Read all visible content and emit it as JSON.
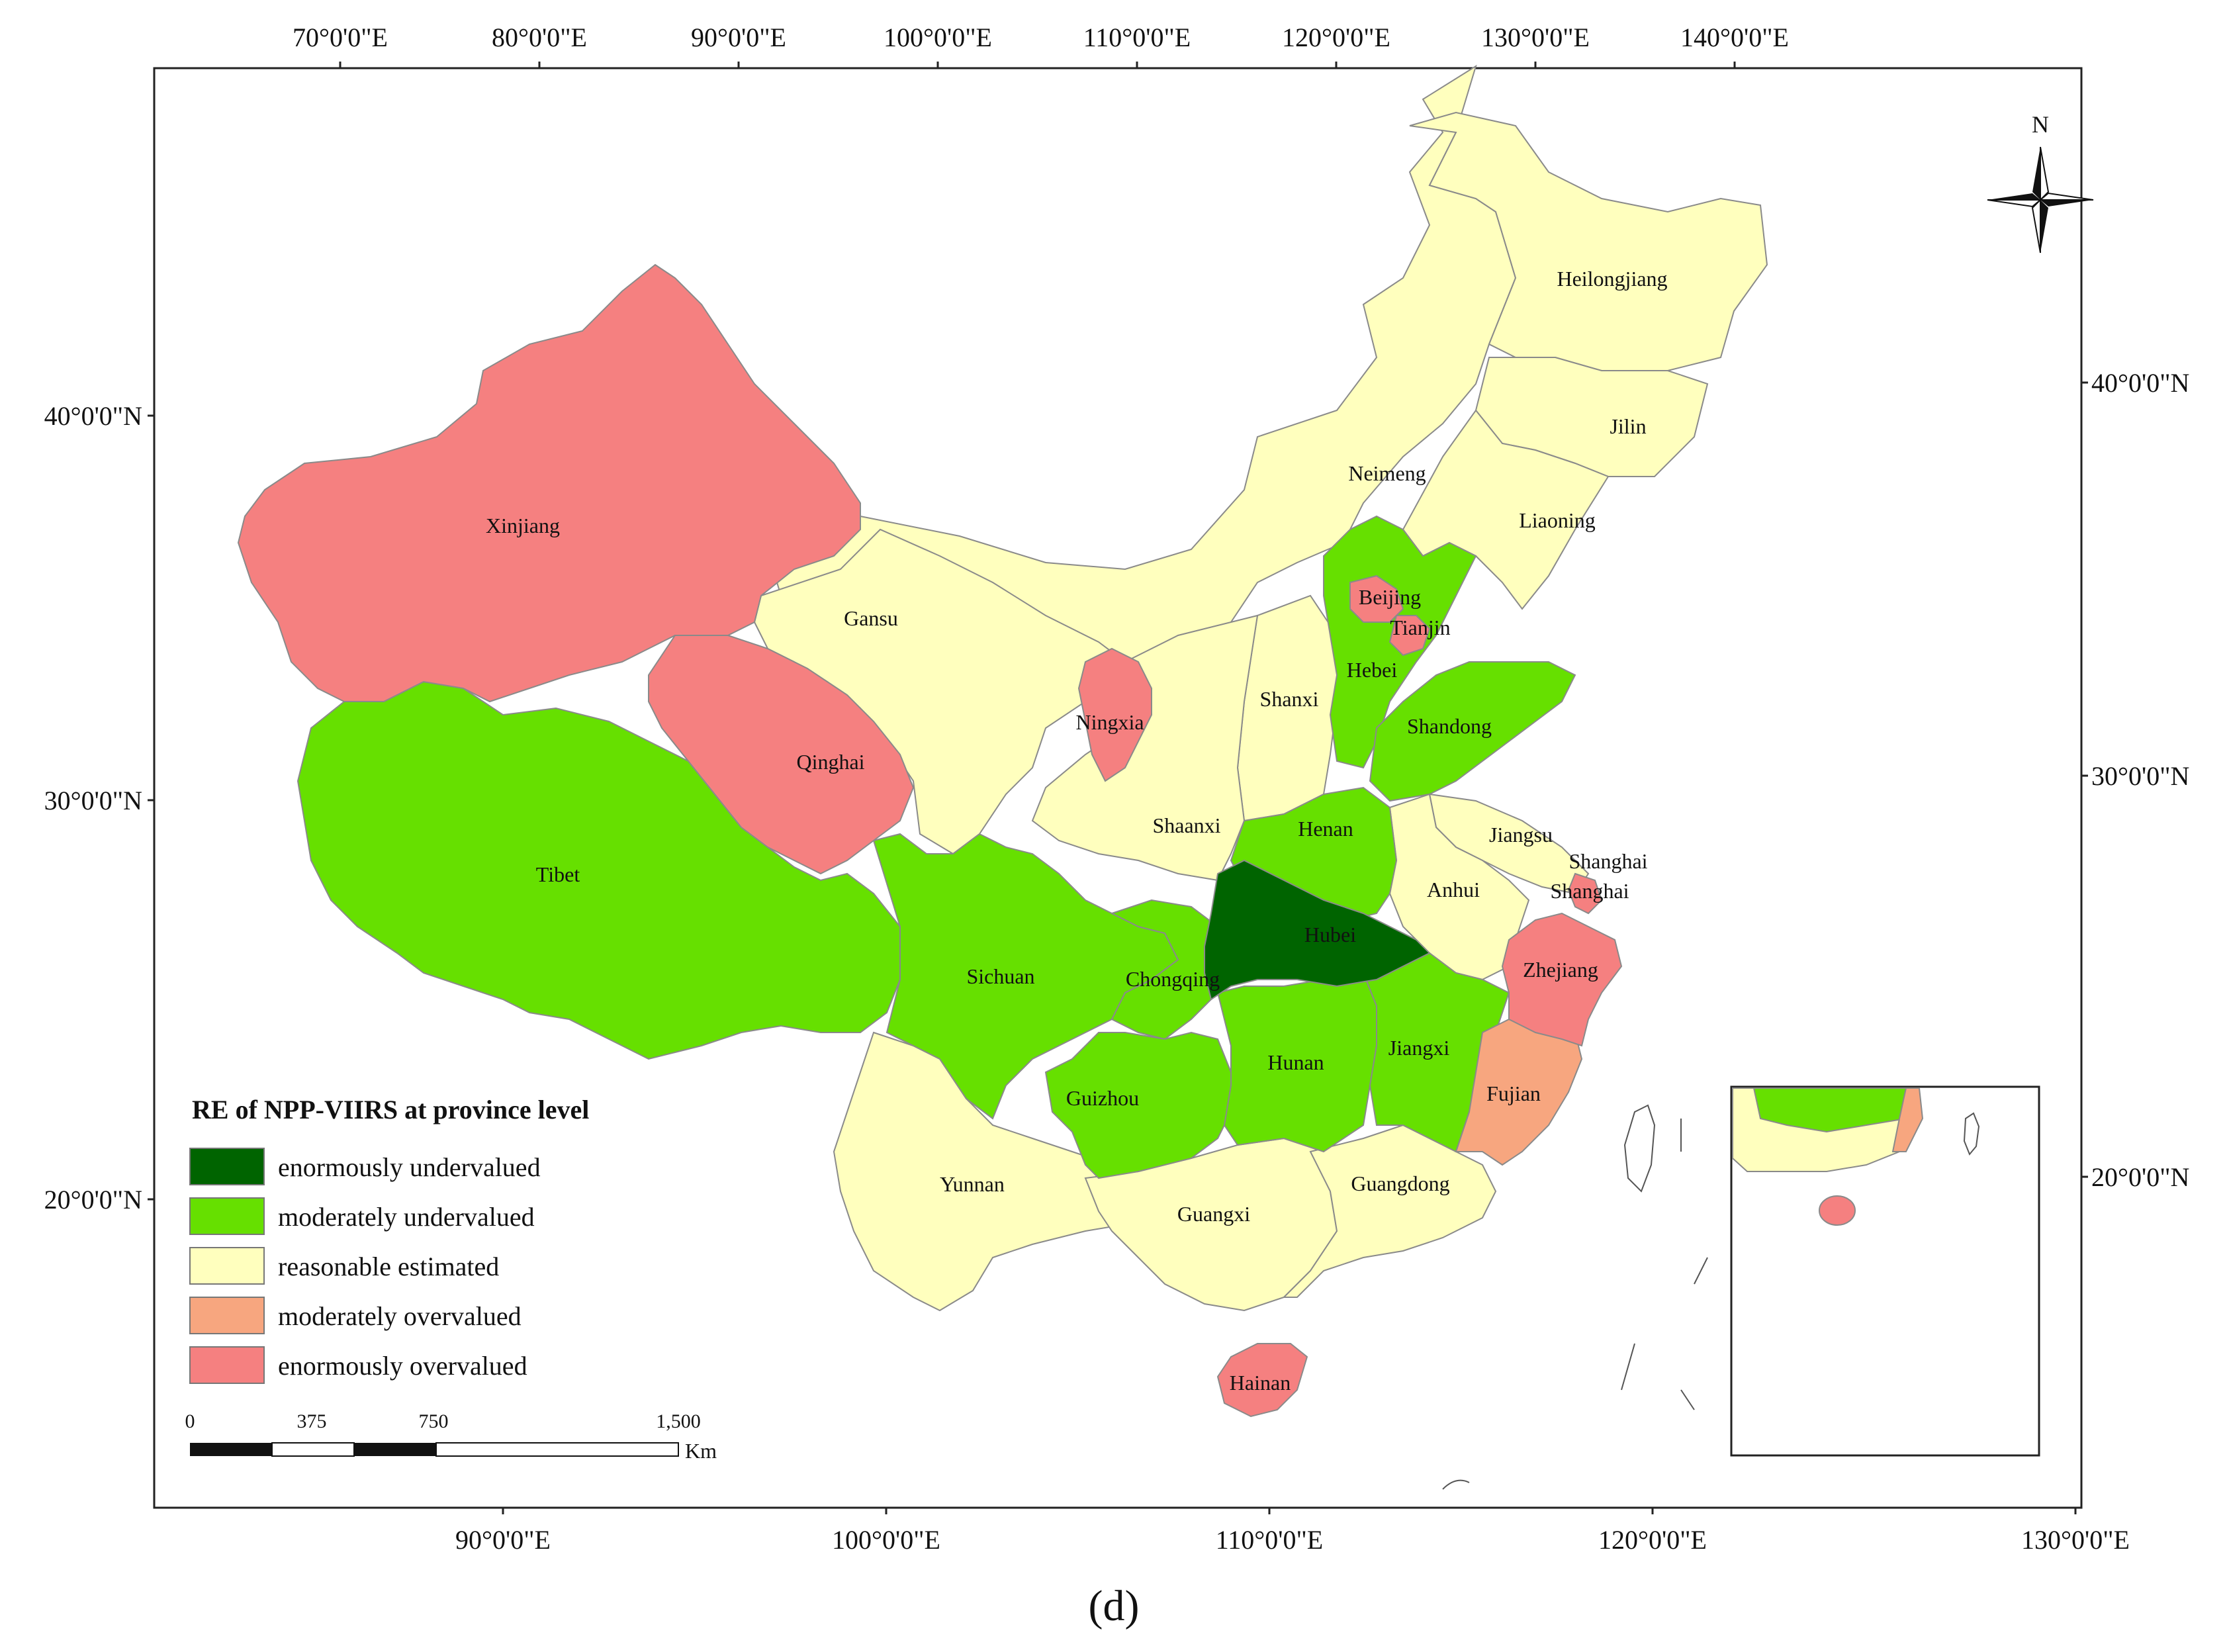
{
  "panel_label": "(d)",
  "legend": {
    "title": "RE of NPP-VIIRS at province level",
    "items": [
      {
        "label": "enormously undervalued",
        "color": "#006400"
      },
      {
        "label": "moderately undervalued",
        "color": "#66e000"
      },
      {
        "label": "reasonable estimated",
        "color": "#ffffbe"
      },
      {
        "label": "moderately overvalued",
        "color": "#f7a67f"
      },
      {
        "label": "enormously overvalued",
        "color": "#f58080"
      }
    ]
  },
  "top_axis_labels": [
    "70°0'0\"E",
    "80°0'0\"E",
    "90°0'0\"E",
    "100°0'0\"E",
    "110°0'0\"E",
    "120°0'0\"E",
    "130°0'0\"E",
    "140°0'0\"E"
  ],
  "bottom_axis_labels": [
    "90°0'0\"E",
    "100°0'0\"E",
    "110°0'0\"E",
    "120°0'0\"E",
    "130°0'0\"E"
  ],
  "left_axis_labels": [
    "40°0'0\"N",
    "30°0'0\"N",
    "20°0'0\"N"
  ],
  "right_axis_labels": [
    "40°0'0\"N",
    "30°0'0\"N",
    "20°0'0\"N"
  ],
  "north_arrow": {
    "label": "N",
    "icon": "north-arrow-icon"
  },
  "scale_bar": {
    "ticks": [
      "0",
      "375",
      "750",
      "1,500"
    ],
    "unit": "Km"
  },
  "provinces": {
    "Xinjiang": "Xinjiang",
    "Tibet": "Tibet",
    "Qinghai": "Qinghai",
    "Gansu": "Gansu",
    "Neimeng": "Neimeng",
    "Heilongjiang": "Heilongjiang",
    "Jilin": "Jilin",
    "Liaoning": "Liaoning",
    "Beijing": "Beijing",
    "Tianjin": "Tianjin",
    "Hebei": "Hebei",
    "Shanxi": "Shanxi",
    "Shandong": "Shandong",
    "Ningxia": "Ningxia",
    "Shaanxi": "Shaanxi",
    "Henan": "Henan",
    "Jiangsu": "Jiangsu",
    "Shanghai1": "Shanghai",
    "Shanghai2": "Shanghai",
    "Anhui": "Anhui",
    "Hubei": "Hubei",
    "Sichuan": "Sichuan",
    "Chongqing": "Chongqing",
    "Zhejiang": "Zhejiang",
    "Hunan": "Hunan",
    "Jiangxi": "Jiangxi",
    "Guizhou": "Guizhou",
    "Fujian": "Fujian",
    "Yunnan": "Yunnan",
    "Guangxi": "Guangxi",
    "Guangdong": "Guangdong",
    "Hainan": "Hainan"
  }
}
